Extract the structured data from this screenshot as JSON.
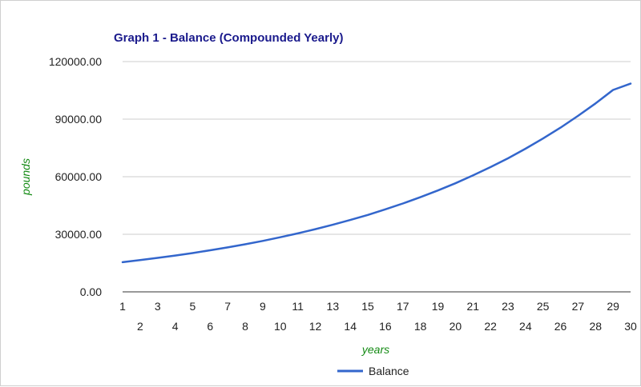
{
  "chart_data": {
    "type": "line",
    "title": "Graph 1 - Balance (Compounded Yearly)",
    "xlabel": "years",
    "ylabel": "pounds",
    "x": [
      1,
      2,
      3,
      4,
      5,
      6,
      7,
      8,
      9,
      10,
      11,
      12,
      13,
      14,
      15,
      16,
      17,
      18,
      19,
      20,
      21,
      22,
      23,
      24,
      25,
      26,
      27,
      28,
      29,
      30
    ],
    "series": [
      {
        "name": "Balance",
        "color": "#3366cc",
        "values": [
          15450,
          16550,
          17700,
          18900,
          20200,
          21650,
          23150,
          24800,
          26550,
          28450,
          30450,
          32650,
          34950,
          37450,
          40100,
          43000,
          46050,
          49350,
          52850,
          56600,
          60650,
          65000,
          69600,
          74600,
          79900,
          85600,
          91700,
          98200,
          105200,
          108500
        ]
      }
    ],
    "ylim": [
      0,
      120000
    ],
    "y_ticks": [
      "0.00",
      "30000.00",
      "60000.00",
      "90000.00",
      "120000.00"
    ],
    "x_ticks": [
      "1",
      "2",
      "3",
      "4",
      "5",
      "6",
      "7",
      "8",
      "9",
      "10",
      "11",
      "12",
      "13",
      "14",
      "15",
      "16",
      "17",
      "18",
      "19",
      "20",
      "21",
      "22",
      "23",
      "24",
      "25",
      "26",
      "27",
      "28",
      "29",
      "30"
    ],
    "grid": true,
    "legend_position": "bottom",
    "colors": {
      "title": "#1a1a8c",
      "axis_title": "#138a13",
      "grid": "#cccccc",
      "baseline": "#333333"
    }
  }
}
